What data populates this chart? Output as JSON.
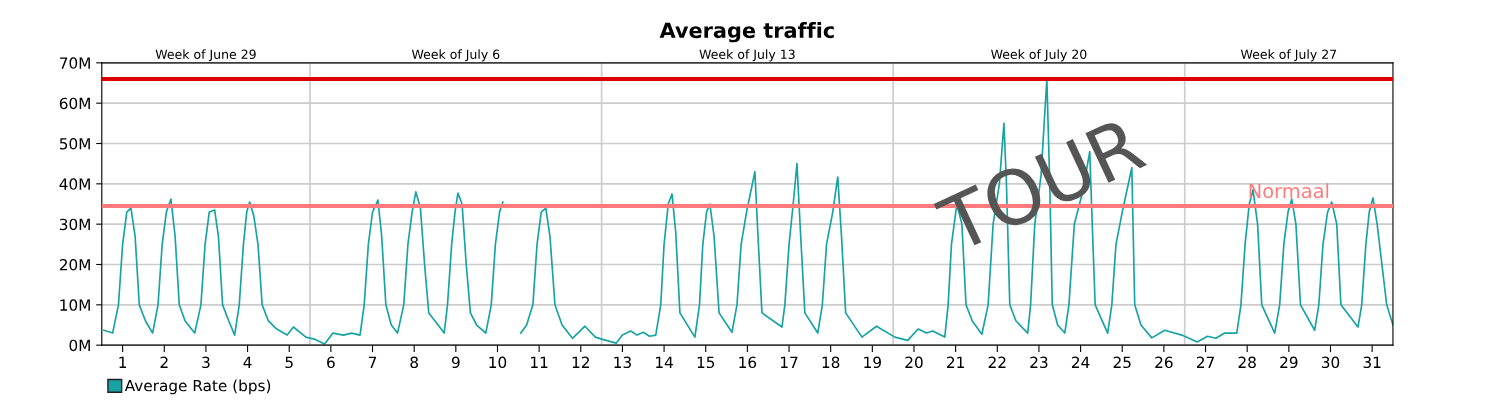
{
  "chart_data": {
    "type": "line",
    "title": "Average traffic",
    "xlim": [
      0.5,
      31.5
    ],
    "xticks": [
      1,
      2,
      3,
      4,
      5,
      6,
      7,
      8,
      9,
      10,
      11,
      12,
      13,
      14,
      15,
      16,
      17,
      18,
      19,
      20,
      21,
      22,
      23,
      24,
      25,
      26,
      27,
      28,
      29,
      30,
      31
    ],
    "ylim": [
      0,
      70
    ],
    "yticks": [
      {
        "value": 0,
        "label": "0M"
      },
      {
        "value": 10,
        "label": "10M"
      },
      {
        "value": 20,
        "label": "20M"
      },
      {
        "value": 30,
        "label": "30M"
      },
      {
        "value": 40,
        "label": "40M"
      },
      {
        "value": 50,
        "label": "50M"
      },
      {
        "value": 60,
        "label": "60M"
      },
      {
        "value": 70,
        "label": "70M"
      }
    ],
    "grid": "y",
    "legend": "bottom left",
    "ref_lines": [
      {
        "axis": "y",
        "value": 66,
        "color": "#dd0000"
      },
      {
        "axis": "y",
        "value": 34.5,
        "label": "Normaal",
        "color": "#ff7b7b"
      },
      {
        "axis": "x",
        "value": 5.5,
        "color": "#cccccc"
      },
      {
        "axis": "x",
        "value": 12.5,
        "color": "#cccccc"
      },
      {
        "axis": "x",
        "value": 19.5,
        "color": "#cccccc"
      },
      {
        "axis": "x",
        "value": 26.5,
        "color": "#cccccc"
      }
    ],
    "annotations": [
      "TOUR",
      "Week of June 29",
      "Week of July 6",
      "Week of July 13",
      "Week of July 20",
      "Week of July 27"
    ],
    "series": [
      {
        "name": "Average Rate (bps)",
        "color": "#17a3a3",
        "x": [
          0.55,
          0.76,
          0.9,
          1.0,
          1.1,
          1.2,
          1.3,
          1.4,
          1.55,
          1.72,
          1.85,
          1.95,
          2.05,
          2.16,
          2.26,
          2.36,
          2.5,
          2.73,
          2.88,
          2.98,
          3.08,
          3.21,
          3.3,
          3.4,
          3.55,
          3.69,
          3.8,
          3.9,
          3.98,
          4.05,
          4.15,
          4.25,
          4.35,
          4.5,
          4.7,
          4.95,
          5.1,
          5.4,
          5.6,
          5.85,
          6.05,
          6.3,
          6.5,
          6.7,
          6.8,
          6.9,
          7.0,
          7.13,
          7.22,
          7.32,
          7.45,
          7.6,
          7.75,
          7.85,
          7.95,
          8.04,
          8.15,
          8.25,
          8.35,
          8.5,
          8.72,
          8.8,
          8.9,
          8.98,
          9.05,
          9.15,
          9.25,
          9.35,
          9.5,
          9.72,
          9.85,
          9.95,
          10.05,
          10.13,
          10.35,
          10.56,
          10.7,
          10.85,
          10.95,
          11.05,
          11.16,
          11.26,
          11.38,
          11.55,
          11.8,
          12.1,
          12.35,
          12.5,
          12.85,
          13.0,
          13.2,
          13.35,
          13.5,
          13.65,
          13.8,
          13.92,
          14.0,
          14.1,
          14.19,
          14.28,
          14.38,
          14.74,
          14.85,
          14.93,
          15.02,
          15.1,
          15.2,
          15.32,
          15.63,
          15.75,
          15.85,
          15.98,
          16.18,
          16.25,
          16.35,
          16.83,
          16.9,
          17.0,
          17.1,
          17.19,
          17.28,
          17.38,
          17.69,
          17.8,
          17.9,
          18.05,
          18.17,
          18.26,
          18.36,
          18.75,
          19.1,
          19.54,
          19.85,
          20.1,
          20.3,
          20.45,
          20.74,
          20.82,
          20.9,
          21.03,
          21.15,
          21.25,
          21.4,
          21.63,
          21.78,
          21.9,
          22.05,
          22.16,
          22.22,
          22.3,
          22.45,
          22.73,
          22.8,
          22.9,
          23.05,
          23.19,
          23.26,
          23.32,
          23.45,
          23.62,
          23.72,
          23.85,
          24.05,
          24.22,
          24.28,
          24.35,
          24.65,
          24.75,
          24.85,
          25.0,
          25.23,
          25.3,
          25.45,
          25.71,
          26.02,
          26.43,
          26.8,
          27.05,
          27.25,
          27.46,
          27.75,
          27.85,
          27.95,
          28.05,
          28.14,
          28.25,
          28.35,
          28.66,
          28.78,
          28.88,
          28.98,
          29.07,
          29.17,
          29.28,
          29.62,
          29.72,
          29.82,
          29.93,
          30.03,
          30.15,
          30.25,
          30.66,
          30.75,
          30.85,
          30.93,
          31.02,
          31.12,
          31.35,
          31.5
        ],
        "values": [
          3.7,
          3,
          10,
          25,
          33,
          34,
          27,
          10,
          6,
          3,
          10,
          25,
          33,
          36.2,
          27,
          10,
          6,
          3,
          10,
          25,
          33,
          33.5,
          27,
          10,
          6,
          2.5,
          10,
          25,
          33,
          35.5,
          32,
          25,
          10,
          6,
          4,
          2.5,
          4.5,
          2,
          1.5,
          0.3,
          3,
          2.5,
          3,
          2.5,
          10,
          25,
          33,
          36,
          27,
          10,
          5,
          3,
          10,
          25,
          33,
          38,
          34,
          20,
          8,
          6,
          3,
          10,
          25,
          33,
          37.7,
          35,
          20,
          8,
          5,
          3,
          10,
          25,
          33,
          35.5,
          null,
          3,
          5,
          10,
          25,
          33,
          34,
          27,
          10,
          5,
          1.7,
          4.7,
          2,
          1.5,
          0.5,
          2.5,
          3.5,
          2.5,
          3.2,
          2.2,
          2.5,
          10,
          25,
          35,
          37.5,
          28,
          8,
          2,
          10,
          25,
          33,
          35,
          27,
          8,
          3.2,
          10,
          25,
          33,
          43,
          28,
          8,
          4.5,
          10,
          25,
          35,
          45,
          27,
          8,
          3,
          10,
          25,
          33,
          41.7,
          27,
          8,
          2,
          4.7,
          2,
          1.2,
          4,
          3,
          3.5,
          2,
          10,
          25,
          35,
          30,
          10,
          6,
          2.7,
          10,
          30,
          40,
          55,
          40,
          10,
          6,
          3,
          10,
          30,
          42,
          66,
          40,
          10,
          5,
          3,
          10,
          30,
          38,
          48,
          30,
          10,
          3,
          10,
          25,
          33,
          44,
          10,
          5,
          1.8,
          3.7,
          2.5,
          0.8,
          2.2,
          1.7,
          3,
          3,
          10,
          25,
          35,
          38.5,
          30,
          10,
          3,
          10,
          25,
          33,
          36.2,
          30,
          10,
          3.7,
          10,
          25,
          33,
          35.5,
          30,
          10,
          4.5,
          10,
          25,
          33,
          36.5,
          30,
          10,
          5
        ]
      }
    ]
  }
}
